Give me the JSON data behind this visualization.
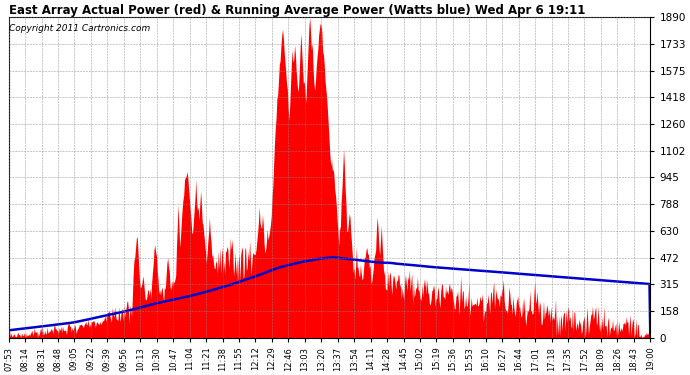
{
  "title": "East Array Actual Power (red) & Running Average Power (Watts blue) Wed Apr 6 19:11",
  "copyright": "Copyright 2011 Cartronics.com",
  "yticks": [
    0.0,
    157.5,
    315.0,
    472.5,
    630.0,
    787.5,
    945.0,
    1102.5,
    1260.0,
    1417.5,
    1575.1,
    1732.6,
    1890.1
  ],
  "ymax": 1890.1,
  "ymin": 0.0,
  "bg_color": "#ffffff",
  "grid_color": "#888888",
  "actual_color": "#ff0000",
  "avg_color": "#0000cc",
  "xtick_labels": [
    "07:53",
    "08:14",
    "08:31",
    "08:48",
    "09:05",
    "09:22",
    "09:39",
    "09:56",
    "10:13",
    "10:30",
    "10:47",
    "11:04",
    "11:21",
    "11:38",
    "11:55",
    "12:12",
    "12:29",
    "12:46",
    "13:03",
    "13:20",
    "13:37",
    "13:54",
    "14:11",
    "14:28",
    "14:45",
    "15:02",
    "15:19",
    "15:36",
    "15:53",
    "16:10",
    "16:27",
    "16:44",
    "17:01",
    "17:18",
    "17:35",
    "17:52",
    "18:09",
    "18:26",
    "18:43",
    "19:00"
  ],
  "figwidth": 6.9,
  "figheight": 3.75,
  "dpi": 100
}
